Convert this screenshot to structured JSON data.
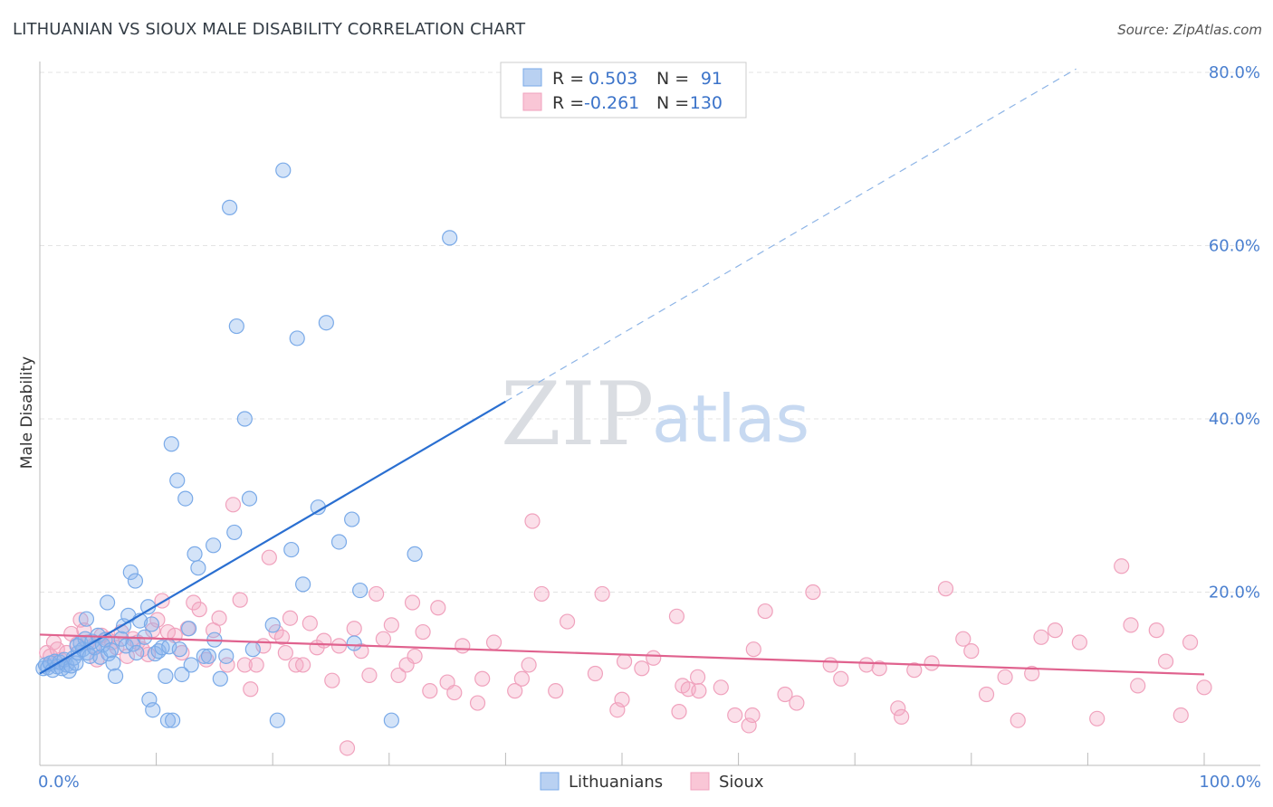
{
  "title": "LITHUANIAN VS SIOUX MALE DISABILITY CORRELATION CHART",
  "source": "Source: ZipAtlas.com",
  "watermark": {
    "zip": "ZIP",
    "atlas": "atlas"
  },
  "chart_data": {
    "type": "scatter",
    "title": "LITHUANIAN VS SIOUX MALE DISABILITY CORRELATION CHART",
    "xlabel": "",
    "ylabel": "Male Disability",
    "xlim": [
      0,
      100
    ],
    "ylim": [
      0,
      80
    ],
    "x_ticks": [
      0,
      10,
      20,
      30,
      40,
      50,
      60,
      70,
      80,
      90,
      100
    ],
    "x_tick_labels": {
      "0": "0.0%",
      "100": "100.0%"
    },
    "y_ticks": [
      20,
      40,
      60,
      80
    ],
    "y_tick_labels": [
      "20.0%",
      "40.0%",
      "60.0%",
      "80.0%"
    ],
    "grid": true,
    "legend_position": "top-center",
    "legend": [
      {
        "r_label": "R =",
        "r_value": "0.503",
        "n_label": "N =",
        "n_value": "91"
      },
      {
        "r_label": "R =",
        "r_value": "-0.261",
        "n_label": "N =",
        "n_value": "130"
      }
    ],
    "series": [
      {
        "name": "Lithuanians",
        "color": "#7aaae8",
        "line_color": "#2a6fd1",
        "trend": {
          "x": [
            0,
            40
          ],
          "y": [
            10.6,
            42
          ],
          "dashed_to": {
            "x": [
              40,
              89
            ],
            "y": [
              42,
              80.4
            ]
          }
        },
        "points": [
          [
            0.3,
            11.2
          ],
          [
            0.5,
            11.6
          ],
          [
            0.7,
            11.3
          ],
          [
            0.9,
            11.8
          ],
          [
            1.1,
            11.0
          ],
          [
            1.3,
            12.0
          ],
          [
            1.5,
            11.4
          ],
          [
            1.7,
            11.9
          ],
          [
            1.9,
            11.2
          ],
          [
            2.1,
            12.2
          ],
          [
            2.3,
            11.6
          ],
          [
            2.5,
            10.9
          ],
          [
            2.7,
            11.5
          ],
          [
            2.9,
            12.4
          ],
          [
            3.1,
            11.8
          ],
          [
            3.3,
            13.0
          ],
          [
            3.5,
            14.1
          ],
          [
            3.7,
            13.4
          ],
          [
            3.9,
            14.6
          ],
          [
            4.1,
            13.0
          ],
          [
            4.3,
            12.6
          ],
          [
            4.5,
            14.3
          ],
          [
            4.7,
            13.6
          ],
          [
            5.0,
            15.0
          ],
          [
            5.2,
            12.5
          ],
          [
            5.4,
            13.9
          ],
          [
            5.6,
            14.5
          ],
          [
            5.9,
            12.9
          ],
          [
            6.1,
            13.3
          ],
          [
            6.3,
            11.8
          ],
          [
            6.5,
            10.3
          ],
          [
            4.0,
            16.9
          ],
          [
            5.8,
            18.8
          ],
          [
            7.0,
            14.6
          ],
          [
            7.2,
            16.1
          ],
          [
            7.4,
            13.8
          ],
          [
            7.6,
            17.3
          ],
          [
            8.0,
            14.0
          ],
          [
            8.3,
            13.0
          ],
          [
            8.6,
            16.7
          ],
          [
            9.0,
            14.8
          ],
          [
            9.3,
            18.3
          ],
          [
            9.6,
            16.3
          ],
          [
            9.9,
            12.9
          ],
          [
            10.2,
            13.2
          ],
          [
            10.5,
            13.6
          ],
          [
            10.8,
            10.3
          ],
          [
            11.1,
            13.7
          ],
          [
            11.3,
            37.1
          ],
          [
            11.8,
            32.9
          ],
          [
            12.0,
            13.4
          ],
          [
            12.2,
            10.5
          ],
          [
            12.5,
            30.8
          ],
          [
            12.8,
            15.8
          ],
          [
            13.0,
            11.6
          ],
          [
            13.3,
            24.4
          ],
          [
            13.6,
            22.8
          ],
          [
            14.1,
            12.6
          ],
          [
            14.5,
            12.6
          ],
          [
            14.9,
            25.4
          ],
          [
            15.0,
            14.5
          ],
          [
            15.5,
            10.0
          ],
          [
            16.0,
            12.6
          ],
          [
            16.3,
            64.4
          ],
          [
            16.7,
            26.9
          ],
          [
            16.9,
            50.7
          ],
          [
            17.6,
            40.0
          ],
          [
            18.0,
            30.8
          ],
          [
            18.3,
            13.4
          ],
          [
            20.0,
            16.2
          ],
          [
            20.4,
            5.2
          ],
          [
            20.9,
            68.7
          ],
          [
            21.6,
            24.9
          ],
          [
            22.1,
            49.3
          ],
          [
            22.6,
            20.9
          ],
          [
            23.9,
            29.8
          ],
          [
            24.6,
            51.1
          ],
          [
            25.7,
            25.8
          ],
          [
            26.8,
            28.4
          ],
          [
            27.0,
            14.1
          ],
          [
            27.5,
            20.2
          ],
          [
            30.2,
            5.2
          ],
          [
            32.2,
            24.4
          ],
          [
            35.2,
            60.9
          ],
          [
            3.2,
            13.8
          ],
          [
            7.8,
            22.3
          ],
          [
            8.2,
            21.3
          ],
          [
            9.4,
            7.6
          ],
          [
            9.7,
            6.4
          ],
          [
            11.0,
            5.2
          ],
          [
            11.4,
            5.2
          ]
        ]
      },
      {
        "name": "Sioux",
        "color": "#f0a2bd",
        "line_color": "#e0628e",
        "trend": {
          "x": [
            0,
            100
          ],
          "y": [
            15.1,
            10.5
          ]
        },
        "points": [
          [
            0.6,
            13.0
          ],
          [
            0.9,
            12.6
          ],
          [
            1.2,
            14.2
          ],
          [
            1.5,
            13.4
          ],
          [
            1.8,
            12.2
          ],
          [
            2.3,
            13.0
          ],
          [
            2.7,
            15.2
          ],
          [
            3.2,
            14.0
          ],
          [
            3.5,
            16.8
          ],
          [
            3.8,
            15.6
          ],
          [
            4.1,
            14.2
          ],
          [
            4.6,
            13.8
          ],
          [
            4.9,
            12.2
          ],
          [
            5.3,
            15.0
          ],
          [
            5.8,
            14.6
          ],
          [
            6.2,
            14.2
          ],
          [
            6.6,
            13.6
          ],
          [
            7.0,
            15.4
          ],
          [
            7.5,
            12.6
          ],
          [
            8.0,
            14.6
          ],
          [
            8.4,
            14.2
          ],
          [
            8.8,
            13.4
          ],
          [
            9.3,
            12.8
          ],
          [
            9.7,
            15.6
          ],
          [
            10.1,
            16.8
          ],
          [
            10.5,
            19.0
          ],
          [
            11.0,
            15.4
          ],
          [
            11.6,
            15.0
          ],
          [
            12.2,
            13.0
          ],
          [
            12.7,
            15.8
          ],
          [
            13.2,
            18.8
          ],
          [
            13.7,
            18.0
          ],
          [
            14.3,
            12.2
          ],
          [
            14.9,
            15.6
          ],
          [
            15.4,
            17.0
          ],
          [
            16.1,
            11.6
          ],
          [
            16.6,
            30.1
          ],
          [
            17.2,
            19.1
          ],
          [
            17.6,
            11.6
          ],
          [
            18.1,
            8.8
          ],
          [
            18.6,
            11.6
          ],
          [
            19.2,
            13.8
          ],
          [
            19.7,
            24.0
          ],
          [
            20.3,
            15.4
          ],
          [
            20.8,
            14.8
          ],
          [
            21.1,
            13.0
          ],
          [
            21.5,
            17.0
          ],
          [
            22.0,
            11.6
          ],
          [
            22.6,
            11.6
          ],
          [
            23.2,
            16.4
          ],
          [
            23.8,
            13.6
          ],
          [
            24.4,
            14.4
          ],
          [
            25.1,
            9.8
          ],
          [
            25.7,
            13.8
          ],
          [
            26.4,
            2.0
          ],
          [
            27.0,
            15.8
          ],
          [
            27.6,
            13.2
          ],
          [
            28.3,
            10.4
          ],
          [
            28.9,
            19.8
          ],
          [
            29.5,
            14.6
          ],
          [
            30.2,
            16.2
          ],
          [
            30.8,
            10.4
          ],
          [
            31.5,
            11.6
          ],
          [
            32.0,
            18.8
          ],
          [
            32.2,
            12.6
          ],
          [
            32.9,
            15.4
          ],
          [
            33.5,
            8.6
          ],
          [
            34.2,
            18.2
          ],
          [
            35.0,
            9.6
          ],
          [
            35.6,
            8.4
          ],
          [
            36.3,
            13.8
          ],
          [
            37.6,
            7.2
          ],
          [
            38.0,
            10.0
          ],
          [
            39.0,
            14.2
          ],
          [
            40.8,
            8.6
          ],
          [
            41.4,
            10.0
          ],
          [
            42.0,
            11.6
          ],
          [
            42.3,
            28.2
          ],
          [
            43.1,
            19.8
          ],
          [
            44.3,
            8.6
          ],
          [
            45.3,
            16.6
          ],
          [
            47.7,
            10.6
          ],
          [
            48.3,
            19.8
          ],
          [
            49.6,
            6.4
          ],
          [
            50.0,
            7.6
          ],
          [
            50.2,
            12.0
          ],
          [
            51.7,
            11.2
          ],
          [
            52.7,
            12.4
          ],
          [
            54.7,
            17.2
          ],
          [
            54.9,
            6.2
          ],
          [
            55.2,
            9.2
          ],
          [
            55.7,
            8.8
          ],
          [
            56.5,
            10.2
          ],
          [
            56.6,
            8.6
          ],
          [
            58.5,
            9.0
          ],
          [
            59.7,
            5.8
          ],
          [
            60.9,
            4.6
          ],
          [
            61.2,
            5.8
          ],
          [
            62.3,
            17.8
          ],
          [
            64.0,
            8.2
          ],
          [
            65.0,
            7.2
          ],
          [
            66.4,
            20.0
          ],
          [
            67.9,
            11.6
          ],
          [
            68.8,
            10.0
          ],
          [
            71.0,
            11.6
          ],
          [
            72.1,
            11.2
          ],
          [
            73.7,
            6.6
          ],
          [
            74.0,
            5.6
          ],
          [
            75.1,
            11.0
          ],
          [
            76.6,
            11.8
          ],
          [
            77.8,
            20.4
          ],
          [
            79.3,
            14.6
          ],
          [
            80.0,
            13.2
          ],
          [
            81.3,
            8.2
          ],
          [
            82.9,
            10.2
          ],
          [
            84.0,
            5.2
          ],
          [
            85.2,
            10.6
          ],
          [
            86.0,
            14.8
          ],
          [
            87.2,
            15.6
          ],
          [
            89.3,
            14.2
          ],
          [
            90.8,
            5.4
          ],
          [
            92.9,
            23.0
          ],
          [
            93.7,
            16.2
          ],
          [
            94.3,
            9.2
          ],
          [
            95.9,
            15.6
          ],
          [
            96.7,
            12.0
          ],
          [
            98.0,
            5.8
          ],
          [
            98.8,
            14.2
          ],
          [
            100.0,
            9.0
          ],
          [
            61.3,
            13.4
          ]
        ]
      }
    ]
  },
  "bottom_legend": [
    "Lithuanians",
    "Sioux"
  ]
}
